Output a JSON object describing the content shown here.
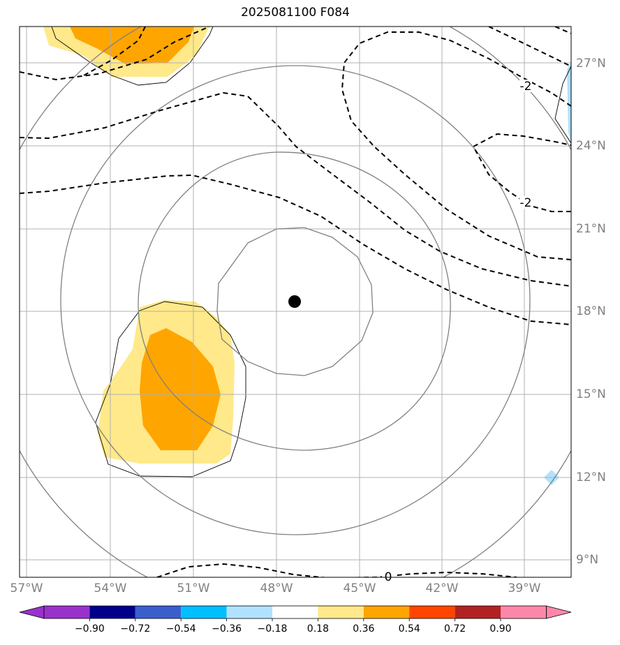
{
  "title": "2025081100 F084",
  "lon_labels": [
    "57°W",
    "54°W",
    "51°W",
    "48°W",
    "45°W",
    "42°W",
    "39°W"
  ],
  "lat_labels": [
    "27°N",
    "24°N",
    "21°N",
    "18°N",
    "15°N",
    "12°N",
    "9°N"
  ],
  "contour_labels": [
    "-2",
    "-2",
    "0"
  ],
  "colorbar": {
    "levels": [
      "−0.90",
      "−0.72",
      "−0.54",
      "−0.36",
      "−0.18",
      "0.18",
      "0.36",
      "0.54",
      "0.72",
      "0.90"
    ],
    "colors": [
      "#9932cc",
      "#00008b",
      "#3a5fcd",
      "#00bfff",
      "#b0e2ff",
      "#ffffff",
      "#ffe98a",
      "#ffa500",
      "#ff4500",
      "#b22222",
      "#ff88aa"
    ]
  },
  "colors": {
    "grid": "#b0b0b0",
    "range_rings": "#808080",
    "contours": "#000000",
    "storm_center": "#000000"
  },
  "storm_center": {
    "lon": "-47.3",
    "lat": "18.3"
  }
}
